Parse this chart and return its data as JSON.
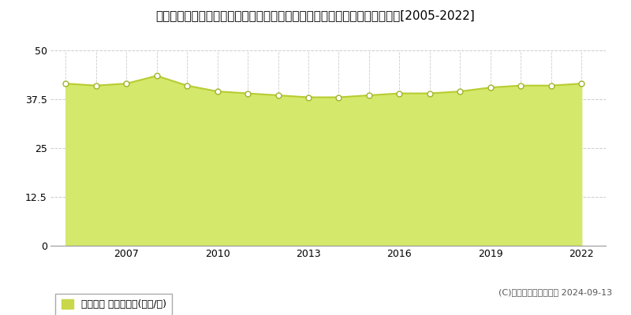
{
  "title": "東京都西多摩郡瑞穂町大字笥根ケ崎字狭山２９５番４　地価公示　地価推移[2005-2022]",
  "years": [
    2005,
    2006,
    2007,
    2008,
    2009,
    2010,
    2011,
    2012,
    2013,
    2014,
    2015,
    2016,
    2017,
    2018,
    2019,
    2020,
    2021,
    2022
  ],
  "values": [
    41.5,
    41.0,
    41.5,
    43.5,
    41.0,
    39.5,
    39.0,
    38.5,
    38.0,
    38.0,
    38.5,
    39.0,
    39.0,
    39.5,
    40.5,
    41.0,
    41.0,
    41.5
  ],
  "ylim": [
    0,
    50
  ],
  "yticks": [
    0,
    12.5,
    25,
    37.5,
    50
  ],
  "ytick_labels": [
    "0",
    "12.5",
    "25",
    "37.5",
    "50"
  ],
  "fill_color": "#d4e96b",
  "fill_alpha": 1.0,
  "line_color": "#b8cc30",
  "line_width": 1.5,
  "marker_color": "white",
  "marker_edge_color": "#a0b428",
  "marker_size": 5,
  "bg_color": "#ffffff",
  "grid_h_color": "#cccccc",
  "grid_v_color": "#cccccc",
  "title_fontsize": 11,
  "legend_label": "地価公示 平均嵪単価(万円/嵪)",
  "legend_color": "#c8d84a",
  "copyright_text": "(C)土地価格ドットコム 2024-09-13",
  "xtick_years": [
    2007,
    2010,
    2013,
    2016,
    2019,
    2022
  ],
  "xlim_left": 2004.5,
  "xlim_right": 2022.8
}
